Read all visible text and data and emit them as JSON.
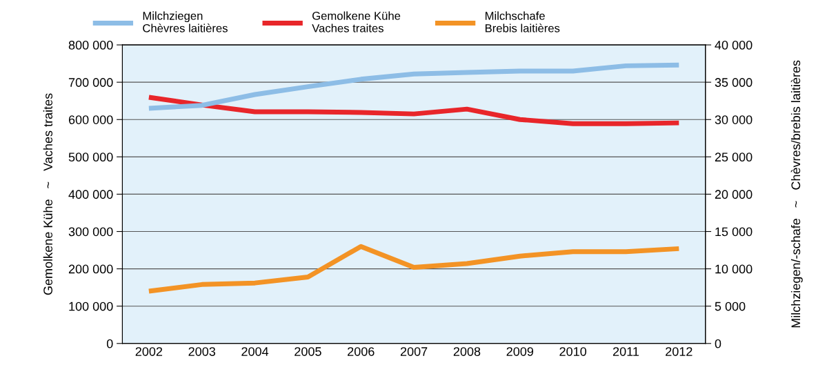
{
  "chart_data": {
    "type": "line",
    "categories": [
      "2002",
      "2003",
      "2004",
      "2005",
      "2006",
      "2007",
      "2008",
      "2009",
      "2010",
      "2011",
      "2012"
    ],
    "series": [
      {
        "name": "Milchziegen\nChèvres laitières",
        "color": "#8dbde6",
        "axis": "y2",
        "values": [
          31500,
          31900,
          33350,
          34400,
          35400,
          36100,
          36300,
          36500,
          36500,
          37200,
          37300
        ]
      },
      {
        "name": "Gemolkene Kühe\nVaches traites",
        "color": "#e8262a",
        "values": [
          659600,
          639000,
          620700,
          620700,
          619000,
          615000,
          628000,
          600000,
          589000,
          589000,
          591000
        ]
      },
      {
        "name": "Milchschafe\nBrebis laitières",
        "color": "#f39325",
        "axis": "y2",
        "values": [
          7000,
          7900,
          8100,
          8900,
          13000,
          10200,
          10700,
          11700,
          12300,
          12300,
          12700
        ]
      }
    ],
    "ylabel": "Gemolkene Kühe   ~   Vaches traites",
    "y2label": "Milchziegen/-schafe   ~   Chèvres/brebis laitières",
    "ylim": [
      0,
      800000
    ],
    "yticks": [
      0,
      {
        "value": 100000,
        "label": "100 000"
      },
      {
        "value": 200000,
        "label": "200 000"
      },
      {
        "value": 300000,
        "label": "300 000"
      },
      {
        "value": 400000,
        "label": "400 000"
      },
      {
        "value": 500000,
        "label": "500 000"
      },
      {
        "value": 600000,
        "label": "600 000"
      },
      {
        "value": 700000,
        "label": "700 000"
      },
      {
        "value": 800000,
        "label": "800 000"
      }
    ],
    "y2lim": [
      0,
      40000
    ],
    "y2ticks": [
      0,
      {
        "value": 5000,
        "label": "5 000"
      },
      {
        "value": 10000,
        "label": "10 000"
      },
      {
        "value": 15000,
        "label": "15 000"
      },
      {
        "value": 20000,
        "label": "20 000"
      },
      {
        "value": 25000,
        "label": "25 000"
      },
      {
        "value": 30000,
        "label": "30 000"
      },
      {
        "value": 35000,
        "label": "35 000"
      },
      {
        "value": 40000,
        "label": "40 000"
      }
    ],
    "grid": "y",
    "legend": "top",
    "marker": "none",
    "line_style": "solid"
  }
}
